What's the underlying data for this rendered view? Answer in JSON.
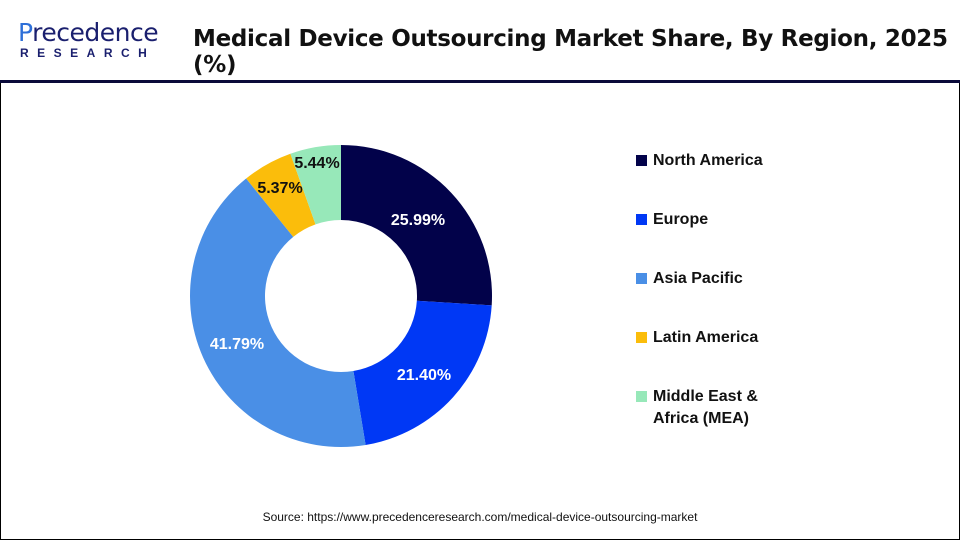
{
  "header": {
    "logo_text_top": "Precedence",
    "logo_text_bottom": "RESEARCH",
    "title": "Medical Device Outsourcing Market Share, By Region, 2025 (%)"
  },
  "chart_data": {
    "type": "pie",
    "donut": true,
    "title": "Medical Device Outsourcing Market Share, By Region, 2025 (%)",
    "categories": [
      "North America",
      "Europe",
      "Asia Pacific",
      "Latin America",
      "Middle East & Africa (MEA)"
    ],
    "values": [
      25.99,
      21.4,
      41.79,
      5.37,
      5.44
    ],
    "labels": [
      "25.99%",
      "21.40%",
      "41.79%",
      "5.37%",
      "5.44%"
    ],
    "colors": [
      "#02024a",
      "#0038f5",
      "#4a8fe6",
      "#fbbd0b",
      "#97e8b9"
    ],
    "label_colors": [
      "#ffffff",
      "#ffffff",
      "#ffffff",
      "#111111",
      "#111111"
    ],
    "legend_placement": "right"
  },
  "source": "Source: https://www.precedenceresearch.com/medical-device-outsourcing-market"
}
